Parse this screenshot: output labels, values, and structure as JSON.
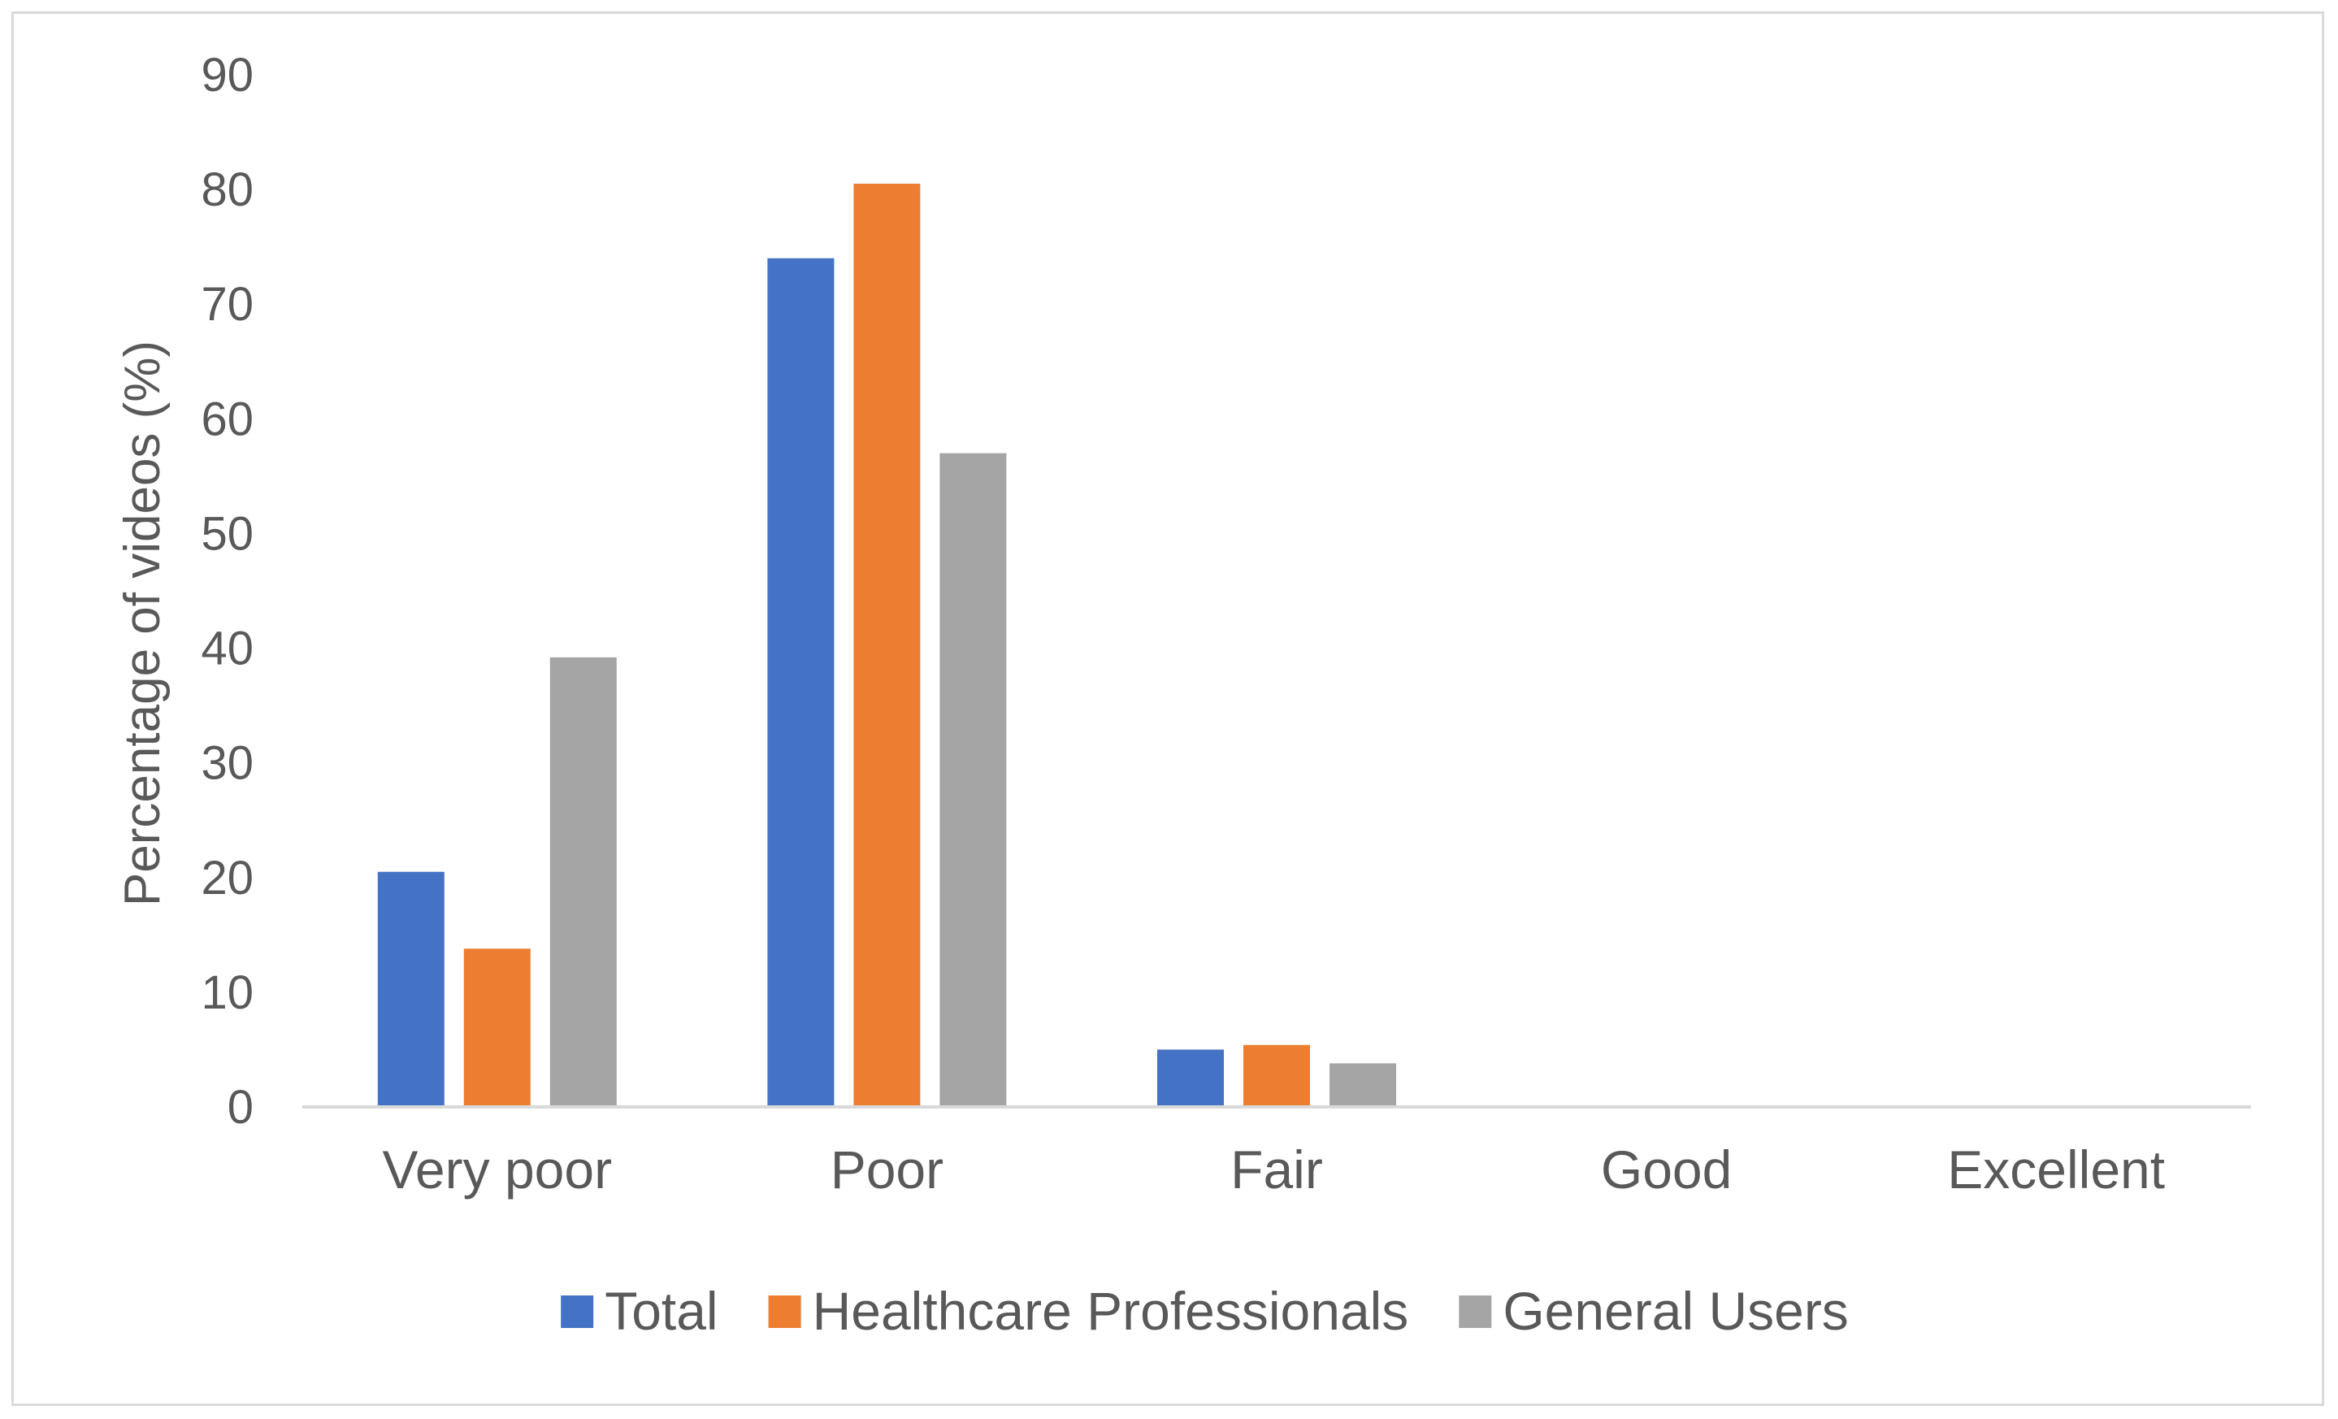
{
  "chart_data": {
    "type": "bar",
    "categories": [
      "Very poor",
      "Poor",
      "Fair",
      "Good",
      "Excellent"
    ],
    "series": [
      {
        "name": "Total",
        "color": "#4472c4",
        "values": [
          20.5,
          74,
          5,
          0,
          0
        ]
      },
      {
        "name": "Healthcare Professionals",
        "color": "#ed7d31",
        "values": [
          13.8,
          80.5,
          5.4,
          0,
          0
        ]
      },
      {
        "name": "General Users",
        "color": "#a5a5a5",
        "values": [
          39.2,
          57,
          3.8,
          0,
          0
        ]
      }
    ],
    "ylabel": "Percentage of videos (%)",
    "xlabel": "",
    "ylim": [
      0,
      90
    ],
    "yticks": [
      "0",
      "10",
      "20",
      "30",
      "40",
      "50",
      "60",
      "70",
      "80",
      "90"
    ],
    "grid": false,
    "legend_position": "bottom"
  }
}
